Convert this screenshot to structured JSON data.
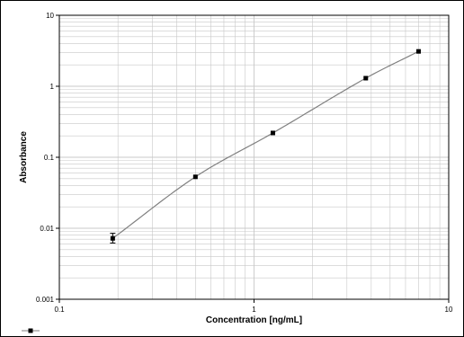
{
  "chart_data": {
    "type": "scatter",
    "title": "",
    "xlabel": "Concentration [ng/mL]",
    "ylabel": "Absorbance",
    "x_scale": "log",
    "y_scale": "log",
    "xlim": [
      0.1,
      10
    ],
    "ylim": [
      0.001,
      10
    ],
    "x_ticks": [
      0.1,
      1,
      10
    ],
    "x_tick_labels": [
      "0.1",
      "1",
      "10"
    ],
    "y_ticks": [
      0.001,
      0.01,
      0.1,
      1,
      10
    ],
    "y_tick_labels": [
      "0.001",
      "0.01",
      "0.1",
      "1",
      "10"
    ],
    "grid": true,
    "legend": "bottom-left",
    "series": [
      {
        "marker": "square",
        "fit_line": true,
        "x": [
          0.188,
          0.5,
          1.25,
          3.75,
          7.0
        ],
        "y": [
          0.0072,
          0.053,
          0.22,
          1.3,
          3.1
        ],
        "y_err_low": [
          0.0062,
          0.053,
          0.22,
          1.3,
          3.1
        ],
        "y_err_high": [
          0.0085,
          0.053,
          0.22,
          1.3,
          3.1
        ]
      }
    ],
    "colors": {
      "marker": "#000000",
      "curve": "#7f7f7f",
      "grid": "#c8c8c8"
    }
  }
}
